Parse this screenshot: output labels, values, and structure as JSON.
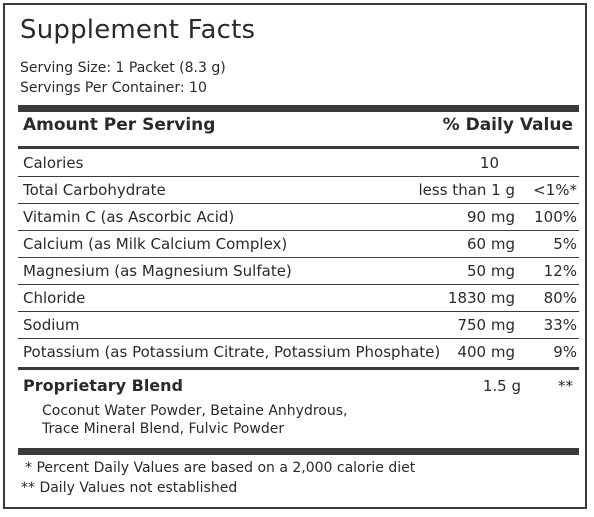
{
  "title": "Supplement Facts",
  "serving_size": "Serving Size: 1 Packet (8.3 g)",
  "servings_per_container": "Servings Per Container: 10",
  "header": {
    "amount_per_serving": "Amount Per Serving",
    "daily_value": "% Daily Value"
  },
  "rows": [
    {
      "name": "Calories",
      "amount": "10",
      "dv": ""
    },
    {
      "name": "Total Carbohydrate",
      "amount": "less than 1 g",
      "dv": "<1%*"
    },
    {
      "name": "Vitamin C (as Ascorbic Acid)",
      "amount": "90 mg",
      "dv": "100%"
    },
    {
      "name": "Calcium (as Milk Calcium Complex)",
      "amount": "60 mg",
      "dv": "5%"
    },
    {
      "name": "Magnesium (as Magnesium Sulfate)",
      "amount": "50 mg",
      "dv": "12%"
    },
    {
      "name": "Chloride",
      "amount": "1830 mg",
      "dv": "80%"
    },
    {
      "name": "Sodium",
      "amount": "750 mg",
      "dv": "33%"
    },
    {
      "name": "Potassium (as Potassium Citrate, Potassium Phosphate)",
      "amount": "400 mg",
      "dv": "9%"
    }
  ],
  "blend": {
    "title": "Proprietary Blend",
    "amount": "1.5 g",
    "dv": "**",
    "ingredients_line1": "Coconut Water Powder, Betaine Anhydrous,",
    "ingredients_line2": "Trace Mineral Blend, Fulvic Powder"
  },
  "footnotes": {
    "note1": "* Percent Daily Values are based on a 2,000 calorie diet",
    "note2": "** Daily Values not established"
  },
  "colors": {
    "rules": "#3a3a3a",
    "text": "#2a2a2a",
    "background": "#ffffff"
  }
}
